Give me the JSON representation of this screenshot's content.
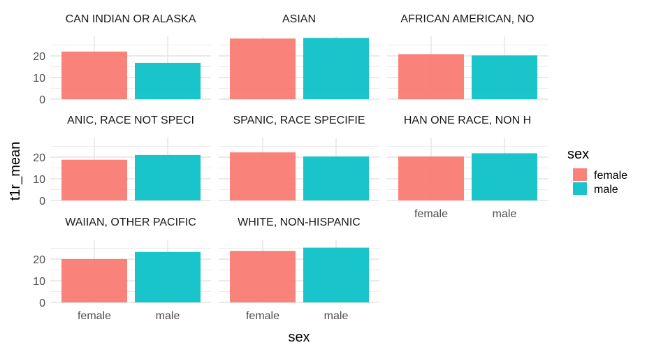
{
  "chart_data": {
    "type": "bar",
    "facet_by": "race",
    "xlabel": "sex",
    "ylabel": "t1r_mean",
    "categories": [
      "female",
      "male"
    ],
    "ylim": [
      0,
      25
    ],
    "yticks": [
      0,
      10,
      20
    ],
    "grid": true,
    "legend": {
      "title": "sex",
      "position": "right",
      "entries": [
        {
          "label": "female",
          "color": "#F8766D"
        },
        {
          "label": "male",
          "color": "#00BFC4"
        }
      ]
    },
    "facets": [
      {
        "label": "CAN INDIAN OR ALASKA",
        "values": [
          22,
          16.8
        ]
      },
      {
        "label": "ASIAN",
        "values": [
          28,
          28.3
        ]
      },
      {
        "label": "AFRICAN AMERICAN, NO",
        "values": [
          20.8,
          20.2
        ]
      },
      {
        "label": "ANIC, RACE NOT SPECI",
        "values": [
          18.8,
          21
        ]
      },
      {
        "label": "SPANIC, RACE SPECIFIE",
        "values": [
          22.2,
          20.3
        ]
      },
      {
        "label": "HAN ONE RACE, NON H",
        "values": [
          20.3,
          21.8
        ]
      },
      {
        "label": "WAIIAN, OTHER PACIFIC",
        "values": [
          20,
          23.3
        ]
      },
      {
        "label": "WHITE, NON-HISPANIC",
        "values": [
          23.8,
          25.3
        ]
      }
    ]
  }
}
